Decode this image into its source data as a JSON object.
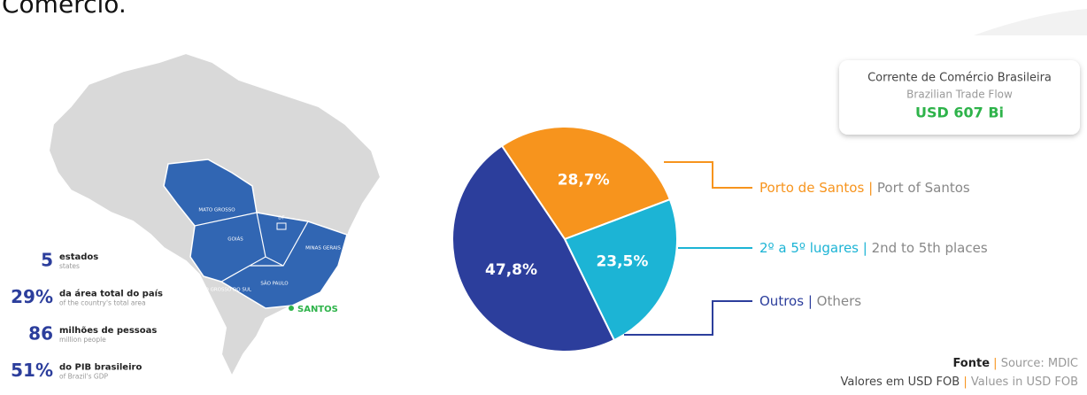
{
  "header": "Comércio.",
  "map": {
    "states": [
      "MATO GROSSO",
      "GOIÁS",
      "DF",
      "MINAS GERAIS",
      "MATO GROSSO DO SUL",
      "SÃO PAULO"
    ],
    "port": "SANTOS"
  },
  "stats": [
    {
      "value": "5",
      "label": "estados",
      "sublabel": "states"
    },
    {
      "value": "29%",
      "label": "da área total do país",
      "sublabel": "of the country's total area"
    },
    {
      "value": "86",
      "label": "milhões de pessoas",
      "sublabel": "million people"
    },
    {
      "value": "51%",
      "label": "do PIB brasileiro",
      "sublabel": "of Brazil's GDP"
    }
  ],
  "box": {
    "pt": "Corrente de Comércio Brasileira",
    "en": "Brazilian Trade Flow",
    "value": "USD 607 Bi"
  },
  "chart_data": {
    "type": "pie",
    "categories": [
      "Porto de Santos",
      "2º a 5º lugares",
      "Outros"
    ],
    "categories_en": [
      "Port of Santos",
      "2nd to 5th places",
      "Others"
    ],
    "separator": "|",
    "values": [
      28.7,
      23.5,
      47.8
    ],
    "value_labels": [
      "28,7%",
      "23,5%",
      "47,8%"
    ],
    "colors": [
      "#f7941d",
      "#1cb4d5",
      "#2c3e9c"
    ]
  },
  "source": {
    "label": "Fonte",
    "text": "Source: MDIC",
    "line2_pt": "Valores em USD FOB",
    "line2_en": "Values in USD FOB",
    "separator": "|"
  }
}
